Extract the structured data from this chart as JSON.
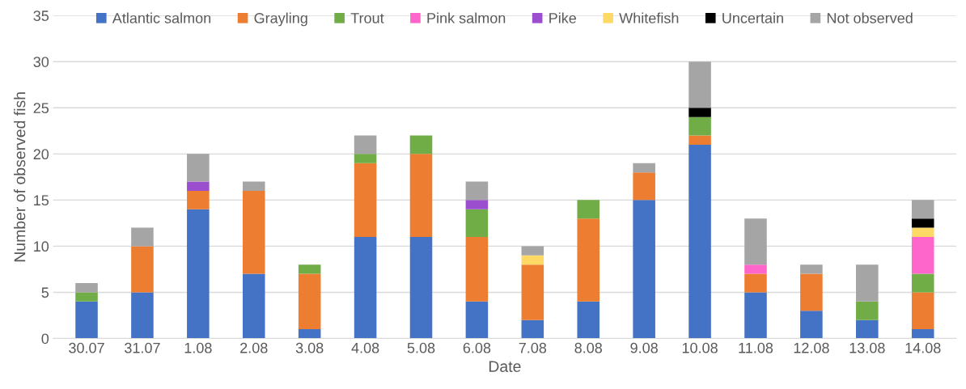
{
  "chart_data": {
    "type": "bar",
    "stacked": true,
    "xlabel": "Date",
    "ylabel": "Number of observed fish",
    "categories": [
      "30.07",
      "31.07",
      "1.08",
      "2.08",
      "3.08",
      "4.08",
      "5.08",
      "6.08",
      "7.08",
      "8.08",
      "9.08",
      "10.08",
      "11.08",
      "12.08",
      "13.08",
      "14.08"
    ],
    "series": [
      {
        "name": "Atlantic salmon",
        "color": "#4472c4",
        "values": [
          4,
          5,
          14,
          7,
          1,
          11,
          11,
          4,
          2,
          4,
          15,
          21,
          5,
          3,
          2,
          1
        ]
      },
      {
        "name": "Grayling",
        "color": "#ed7d31",
        "values": [
          0,
          5,
          2,
          9,
          6,
          8,
          9,
          7,
          6,
          9,
          3,
          1,
          2,
          4,
          0,
          4
        ]
      },
      {
        "name": "Trout",
        "color": "#70ad47",
        "values": [
          1,
          0,
          0,
          0,
          1,
          1,
          2,
          3,
          0,
          2,
          0,
          2,
          0,
          0,
          2,
          2
        ]
      },
      {
        "name": "Pink salmon",
        "color": "#ff66cc",
        "values": [
          0,
          0,
          0,
          0,
          0,
          0,
          0,
          0,
          0,
          0,
          0,
          0,
          1,
          0,
          0,
          4
        ]
      },
      {
        "name": "Pike",
        "color": "#9b4fcf",
        "values": [
          0,
          0,
          1,
          0,
          0,
          0,
          0,
          1,
          0,
          0,
          0,
          0,
          0,
          0,
          0,
          0
        ]
      },
      {
        "name": "Whitefish",
        "color": "#ffd966",
        "values": [
          0,
          0,
          0,
          0,
          0,
          0,
          0,
          0,
          1,
          0,
          0,
          0,
          0,
          0,
          0,
          1
        ]
      },
      {
        "name": "Uncertain",
        "color": "#000000",
        "values": [
          0,
          0,
          0,
          0,
          0,
          0,
          0,
          0,
          0,
          0,
          0,
          1,
          0,
          0,
          0,
          1
        ]
      },
      {
        "name": "Not observed",
        "color": "#a5a5a5",
        "values": [
          1,
          2,
          3,
          1,
          0,
          2,
          0,
          2,
          1,
          0,
          1,
          5,
          5,
          1,
          4,
          2
        ]
      }
    ],
    "ylim": [
      0,
      35
    ],
    "yticks": [
      0,
      5,
      10,
      15,
      20,
      25,
      30,
      35
    ],
    "grid": "y",
    "legend": "top"
  }
}
